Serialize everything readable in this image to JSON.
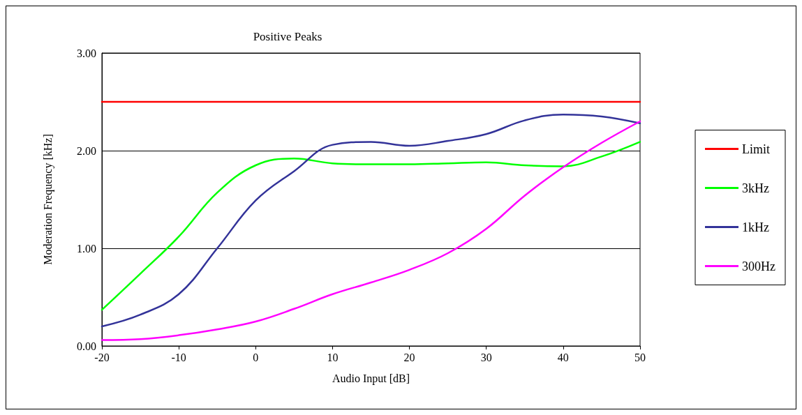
{
  "chart_data": {
    "type": "line",
    "title": "Positive Peaks",
    "xlabel": "Audio Input [dB]",
    "ylabel": "Moderation Frequency [kHz]",
    "x": [
      -20,
      -15,
      -10,
      -5,
      0,
      5,
      10,
      15,
      20,
      25,
      30,
      35,
      40,
      45,
      50
    ],
    "series": [
      {
        "name": "Limit",
        "color": "#ff0000",
        "values": [
          2.5,
          2.5,
          2.5,
          2.5,
          2.5,
          2.5,
          2.5,
          2.5,
          2.5,
          2.5,
          2.5,
          2.5,
          2.5,
          2.5,
          2.5
        ]
      },
      {
        "name": "3kHz",
        "color": "#00ff00",
        "values": [
          0.37,
          0.74,
          1.12,
          1.57,
          1.85,
          1.92,
          1.87,
          1.86,
          1.86,
          1.87,
          1.88,
          1.85,
          1.84,
          1.94,
          2.09
        ]
      },
      {
        "name": "1kHz",
        "color": "#333399",
        "values": [
          0.2,
          0.32,
          0.53,
          1.0,
          1.49,
          1.79,
          2.06,
          2.09,
          2.05,
          2.1,
          2.17,
          2.31,
          2.37,
          2.35,
          2.28
        ]
      },
      {
        "name": "300Hz",
        "color": "#ff00ff",
        "values": [
          0.06,
          0.07,
          0.11,
          0.17,
          0.25,
          0.38,
          0.53,
          0.65,
          0.78,
          0.95,
          1.2,
          1.54,
          1.83,
          2.08,
          2.3
        ]
      }
    ],
    "xlim": [
      -20,
      50
    ],
    "xticks": [
      -20,
      -10,
      0,
      10,
      20,
      30,
      40,
      50
    ],
    "ylim": [
      0,
      3
    ],
    "yticks": [
      {
        "value": 0,
        "label": "0.00"
      },
      {
        "value": 1,
        "label": "1.00"
      },
      {
        "value": 2,
        "label": "2.00"
      },
      {
        "value": 3,
        "label": "3.00"
      }
    ],
    "grid": "y",
    "legend": "right",
    "marker": "none",
    "line_style": "solid"
  }
}
